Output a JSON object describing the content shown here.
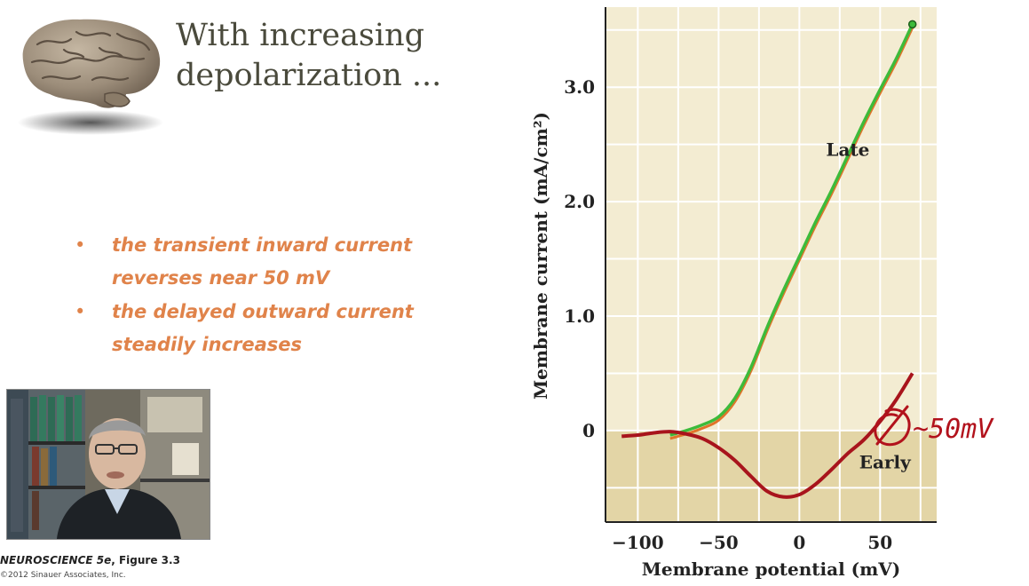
{
  "slide": {
    "title_line1": "With increasing",
    "title_line2": "depolarization ...",
    "bullets": [
      {
        "line1": "the transient inward current",
        "line2": "reverses near 50 mV"
      },
      {
        "line1": "the delayed outward current",
        "line2": "steadily increases"
      }
    ],
    "bullet_marker": "•",
    "credit_book": "NEUROSCIENCE 5e",
    "credit_figure": ", Figure 3.3",
    "credit_copyright": "©2012 Sinauer Associates, Inc."
  },
  "annotation": {
    "handwritten_text": "~50mV"
  },
  "colors": {
    "bullet_text": "#e0834a",
    "title_text": "#4a4a3c",
    "plot_bg": "#f3ecd2",
    "plot_bg_negative": "#e3d5a6",
    "late_curve": "#3dbb3a",
    "late_underlay": "#e0742a",
    "early_curve": "#a8141c",
    "ink": "#b2121c"
  },
  "chart_data": {
    "type": "line",
    "xlabel": "Membrane potential (mV)",
    "ylabel": "Membrane current (mA/cm²)",
    "xlim": [
      -120,
      85
    ],
    "ylim": [
      -0.8,
      3.7
    ],
    "xticks": [
      -100,
      -50,
      0,
      50
    ],
    "xtick_labels": [
      "−100",
      "−50",
      "0",
      "50"
    ],
    "yticks": [
      0,
      1.0,
      2.0,
      3.0
    ],
    "ytick_labels": [
      "0",
      "1.0",
      "2.0",
      "3.0"
    ],
    "grid": true,
    "series": [
      {
        "name": "Late",
        "x": [
          -80,
          -70,
          -60,
          -50,
          -40,
          -30,
          -20,
          -10,
          0,
          10,
          20,
          30,
          40,
          50,
          60,
          70
        ],
        "y": [
          -0.04,
          0.0,
          0.05,
          0.12,
          0.28,
          0.55,
          0.9,
          1.22,
          1.52,
          1.82,
          2.1,
          2.4,
          2.7,
          2.98,
          3.25,
          3.55
        ]
      },
      {
        "name": "Early",
        "x": [
          -110,
          -100,
          -90,
          -80,
          -70,
          -60,
          -50,
          -40,
          -30,
          -20,
          -10,
          0,
          10,
          20,
          30,
          40,
          50,
          60,
          70
        ],
        "y": [
          -0.05,
          -0.04,
          -0.02,
          -0.01,
          -0.03,
          -0.07,
          -0.15,
          -0.26,
          -0.4,
          -0.53,
          -0.58,
          -0.56,
          -0.47,
          -0.34,
          -0.2,
          -0.08,
          0.08,
          0.27,
          0.5
        ]
      }
    ]
  }
}
